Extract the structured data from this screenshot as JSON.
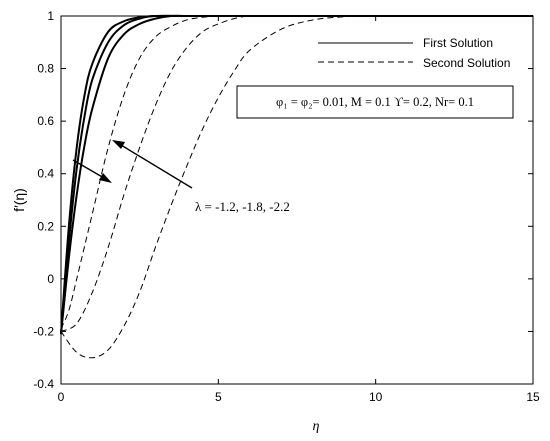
{
  "chart_data": {
    "type": "line",
    "xlabel": "η",
    "ylabel": "f′(η)",
    "xlim": [
      0,
      15
    ],
    "ylim": [
      -0.4,
      1
    ],
    "xticks": [
      0,
      5,
      10,
      15
    ],
    "yticks": [
      -0.4,
      -0.2,
      0,
      0.2,
      0.4,
      0.6,
      0.8,
      1
    ],
    "grid": false,
    "legend": {
      "placement": "top-right",
      "entries": [
        {
          "label": "First Solution",
          "style": "solid"
        },
        {
          "label": "Second Solution",
          "style": "dashed"
        }
      ]
    },
    "parameter_box": "φ₁ = φ₂= 0.01, M = 0.1 ϒ= 0.2, Nr= 0.1",
    "annotation": "λ = -1.2, -1.8, -2.2",
    "series": [
      {
        "style": "solid",
        "x": [
          0,
          0.25,
          0.5,
          0.75,
          1,
          1.5,
          2,
          2.5,
          3,
          4,
          5,
          15
        ],
        "y": [
          -0.21,
          0.2,
          0.5,
          0.7,
          0.82,
          0.94,
          0.98,
          0.995,
          1,
          1,
          1,
          1
        ]
      },
      {
        "style": "solid",
        "x": [
          0,
          0.25,
          0.5,
          0.75,
          1,
          1.5,
          2,
          2.5,
          3,
          4,
          5,
          15
        ],
        "y": [
          -0.21,
          0.14,
          0.42,
          0.62,
          0.76,
          0.9,
          0.965,
          0.99,
          1,
          1,
          1,
          1
        ]
      },
      {
        "style": "solid",
        "x": [
          0,
          0.25,
          0.5,
          0.75,
          1,
          1.5,
          2,
          2.5,
          3,
          3.5,
          4,
          5,
          15
        ],
        "y": [
          -0.21,
          0.08,
          0.32,
          0.51,
          0.65,
          0.84,
          0.93,
          0.97,
          0.99,
          1,
          1,
          1,
          1
        ]
      },
      {
        "style": "dashed",
        "x": [
          0,
          0.25,
          0.5,
          1,
          1.5,
          2,
          2.5,
          3,
          3.5,
          4,
          4.5,
          5,
          6,
          15
        ],
        "y": [
          -0.19,
          -0.12,
          0.0,
          0.25,
          0.5,
          0.7,
          0.84,
          0.92,
          0.96,
          0.985,
          0.995,
          1,
          1,
          1
        ]
      },
      {
        "style": "dashed",
        "x": [
          0,
          0.5,
          1,
          1.5,
          2,
          2.5,
          3,
          3.5,
          4,
          4.5,
          5,
          5.5,
          6,
          7,
          15
        ],
        "y": [
          -0.2,
          -0.17,
          -0.05,
          0.12,
          0.32,
          0.5,
          0.66,
          0.79,
          0.88,
          0.94,
          0.97,
          0.99,
          1,
          1,
          1
        ]
      },
      {
        "style": "dashed",
        "x": [
          0,
          0.5,
          1,
          1.5,
          2,
          2.5,
          3,
          3.5,
          4,
          4.5,
          5,
          5.5,
          6,
          7,
          8,
          9,
          10,
          15
        ],
        "y": [
          -0.2,
          -0.28,
          -0.3,
          -0.27,
          -0.18,
          -0.05,
          0.12,
          0.28,
          0.43,
          0.57,
          0.69,
          0.79,
          0.87,
          0.95,
          0.985,
          0.997,
          1,
          1
        ]
      }
    ]
  }
}
